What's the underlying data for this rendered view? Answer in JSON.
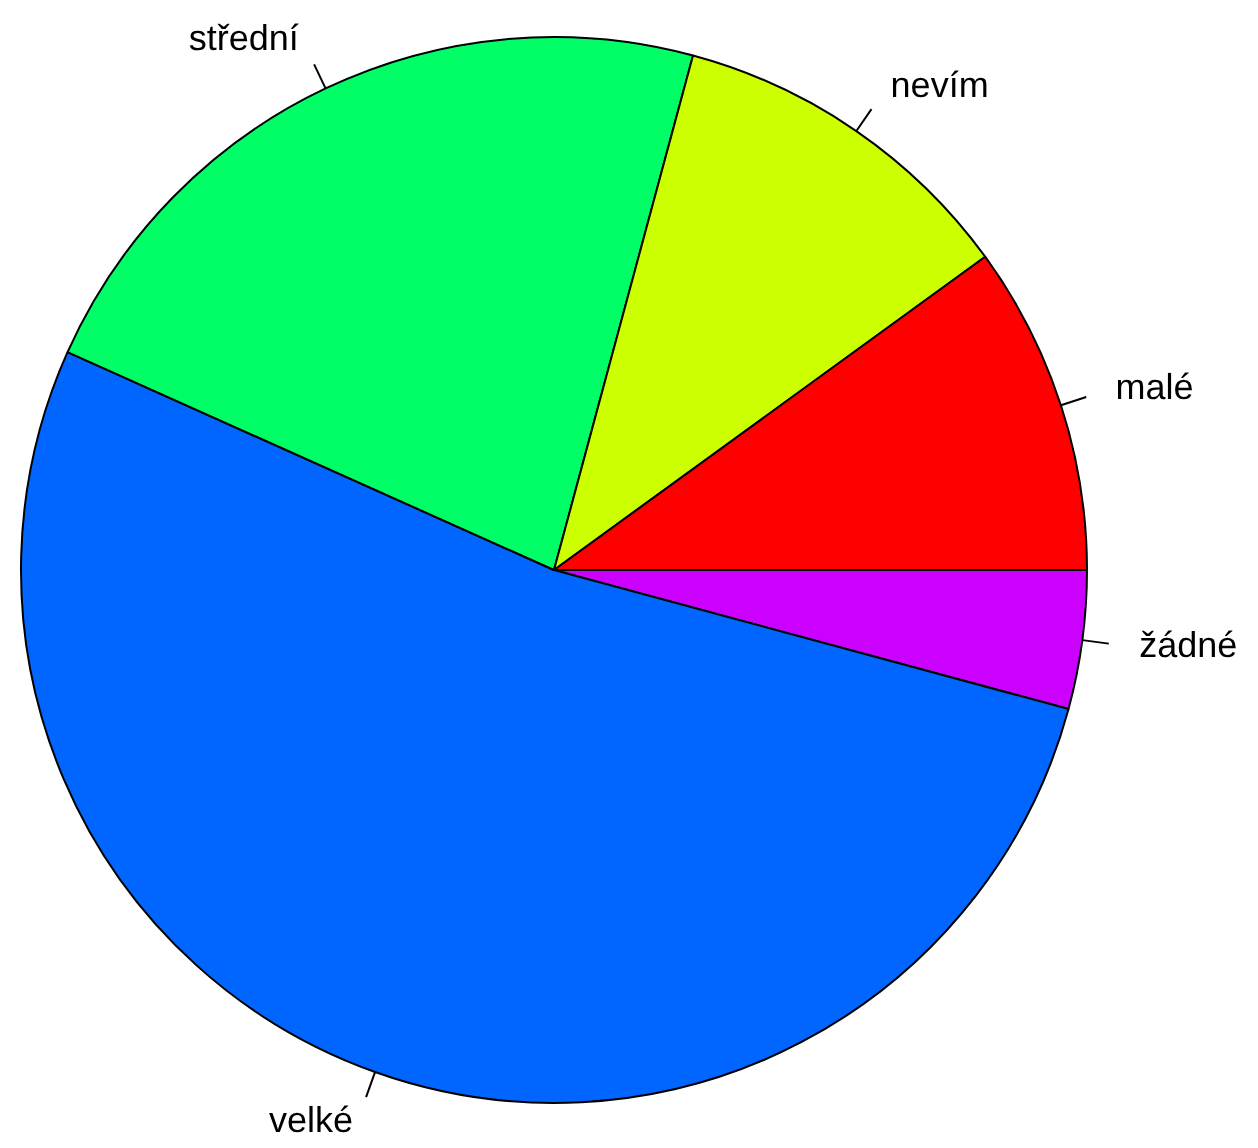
{
  "chart_data": {
    "type": "pie",
    "categories": [
      "malé",
      "nevím",
      "střední",
      "velké",
      "žádné"
    ],
    "values": [
      10,
      10.8,
      22.5,
      52.5,
      4.2
    ],
    "colors": [
      "#ff0000",
      "#ccff00",
      "#00ff66",
      "#0066ff",
      "#cc00ff"
    ],
    "legend": false
  }
}
